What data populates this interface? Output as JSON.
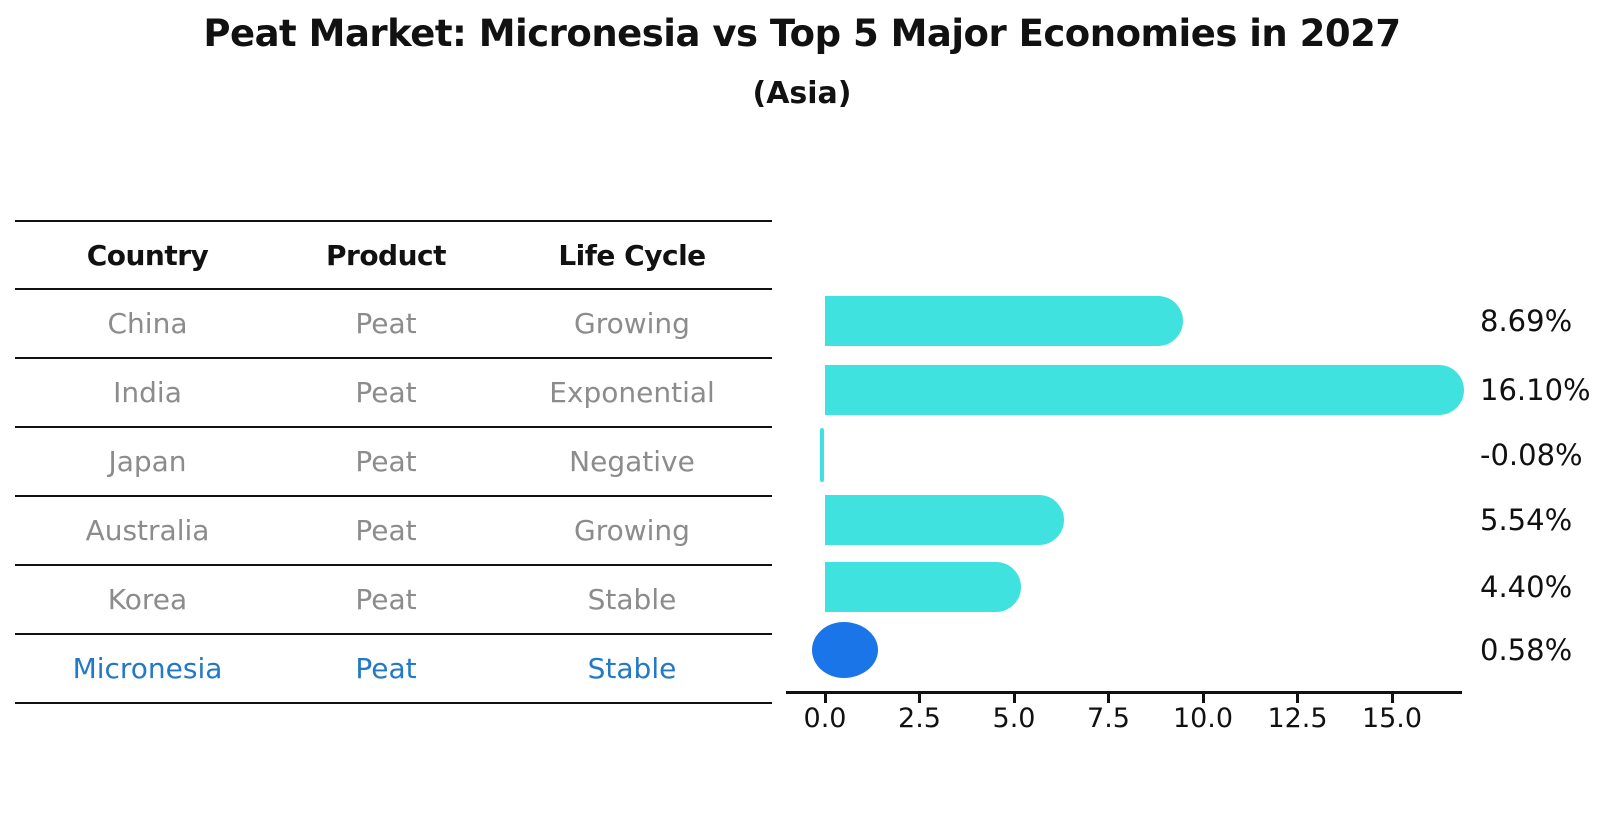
{
  "title": "Peat Market: Micronesia vs Top 5 Major Economies in 2027",
  "subtitle": "(Asia)",
  "table": {
    "headers": [
      "Country",
      "Product",
      "Life Cycle"
    ],
    "rows": [
      {
        "country": "China",
        "product": "Peat",
        "life_cycle": "Growing"
      },
      {
        "country": "India",
        "product": "Peat",
        "life_cycle": "Exponential"
      },
      {
        "country": "Japan",
        "product": "Peat",
        "life_cycle": "Negative"
      },
      {
        "country": "Australia",
        "product": "Peat",
        "life_cycle": "Growing"
      },
      {
        "country": "Korea",
        "product": "Peat",
        "life_cycle": "Stable"
      },
      {
        "country": "Micronesia",
        "product": "Peat",
        "life_cycle": "Stable"
      }
    ],
    "highlight_row": "Micronesia"
  },
  "chart_data": {
    "type": "bar",
    "orientation": "horizontal",
    "title": "Peat Market: Micronesia vs Top 5 Major Economies in 2027",
    "subtitle": "(Asia)",
    "categories": [
      "China",
      "India",
      "Japan",
      "Australia",
      "Korea",
      "Micronesia"
    ],
    "values": [
      8.69,
      16.1,
      -0.08,
      5.54,
      4.4,
      0.58
    ],
    "value_labels": [
      "8.69%",
      "16.10%",
      "-0.08%",
      "5.54%",
      "4.40%",
      "0.58%"
    ],
    "x_ticks": [
      0.0,
      2.5,
      5.0,
      7.5,
      10.0,
      12.5,
      15.0
    ],
    "x_tick_labels": [
      "0.0",
      "2.5",
      "5.0",
      "7.5",
      "10.0",
      "12.5",
      "15.0"
    ],
    "xlim": [
      -1.0,
      16.8
    ],
    "xlabel": "",
    "ylabel": "",
    "grid": false,
    "legend": false,
    "bar_color": "#40E2DF",
    "highlight_color": "#1A76E8",
    "highlight_category": "Micronesia"
  },
  "colors": {
    "bar": "#40E2DF",
    "highlight_bar": "#1A76E8",
    "highlight_text": "#2279C7",
    "row_text": "#8C8C8C",
    "heading_text": "#111111",
    "axis": "#111111"
  }
}
